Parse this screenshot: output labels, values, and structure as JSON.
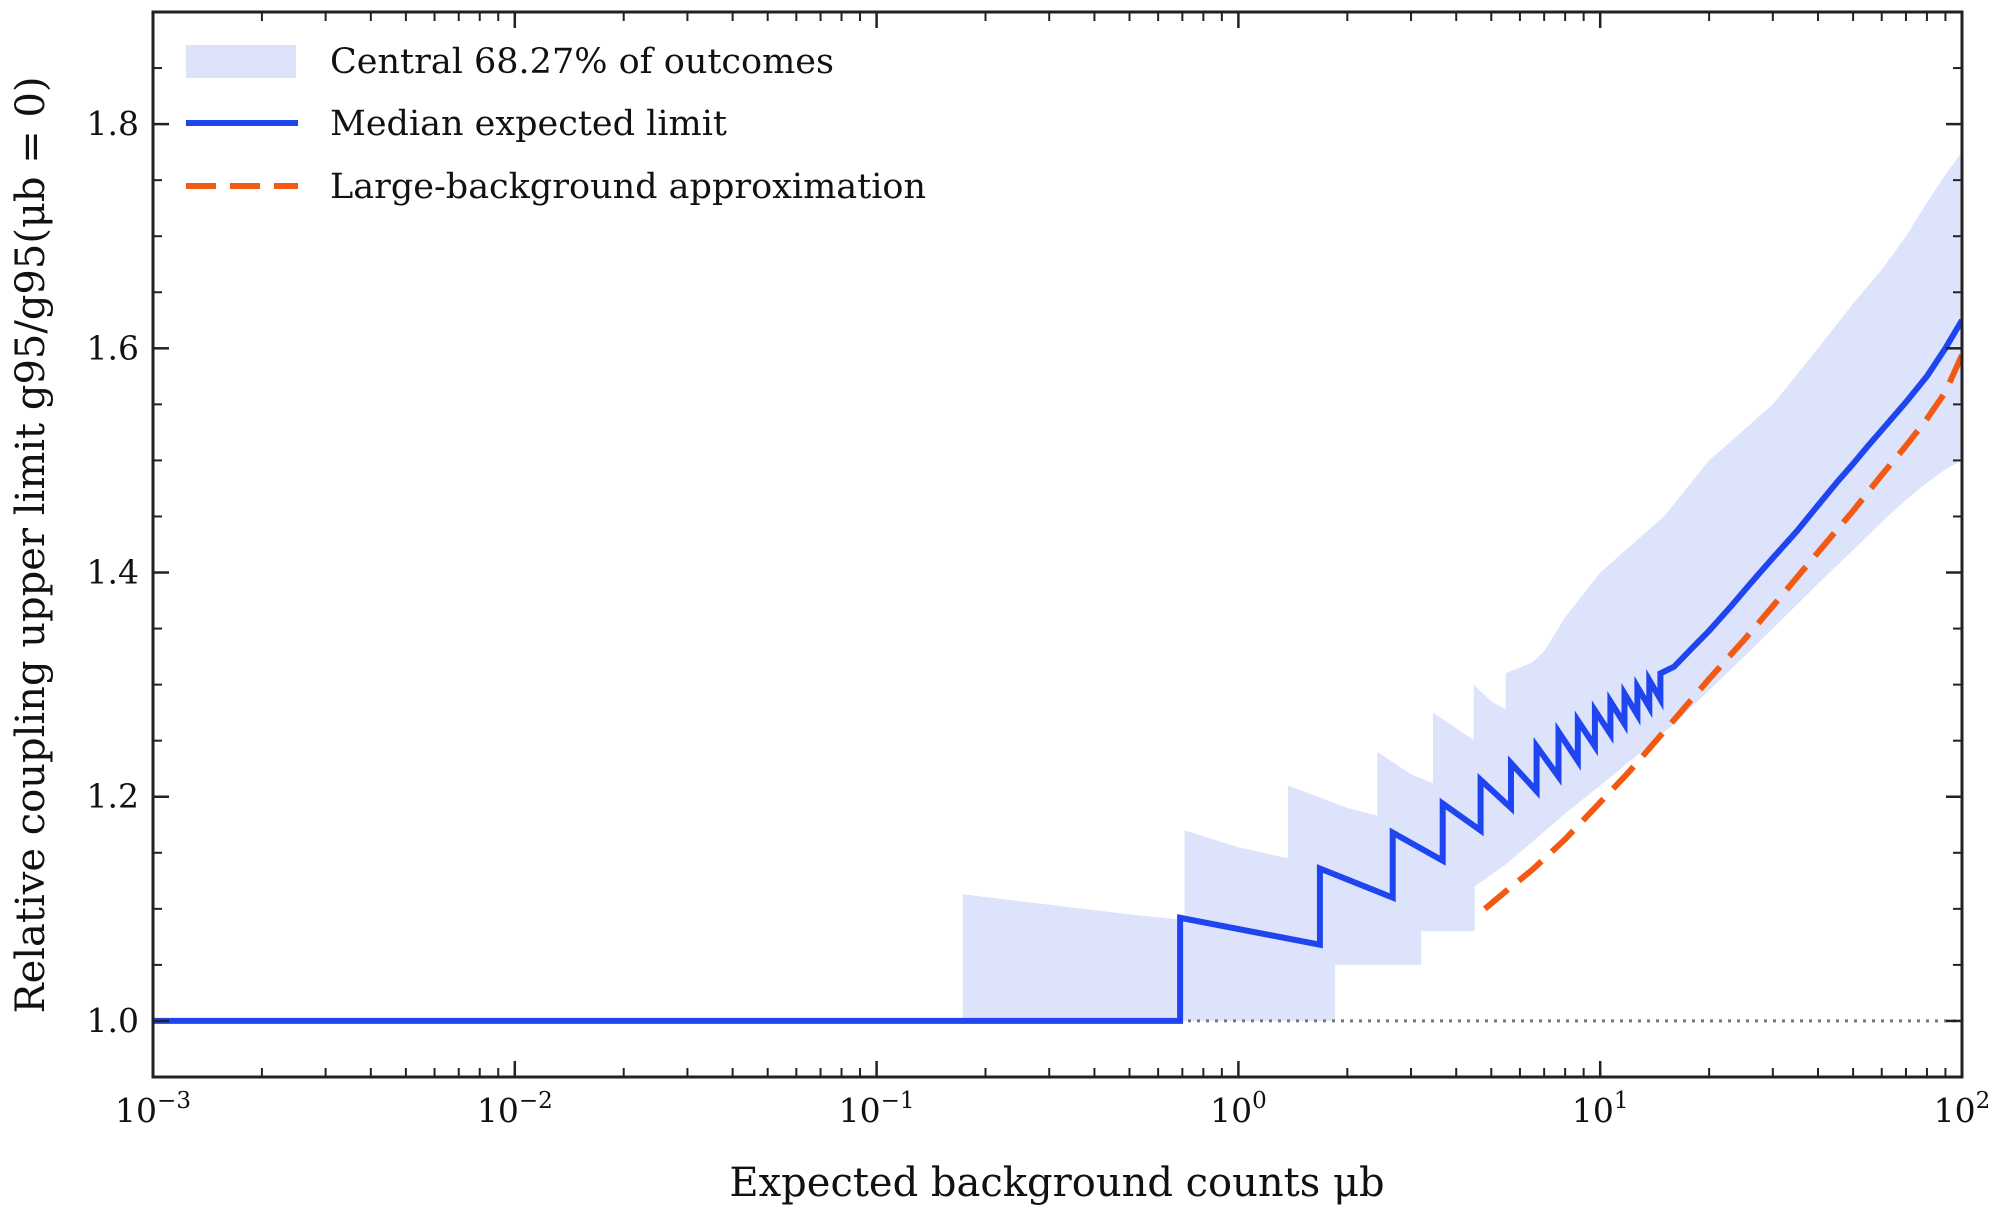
{
  "chart_data": {
    "type": "line",
    "xscale": "log",
    "xlim": [
      0.001,
      100
    ],
    "ylim": [
      0.95,
      1.9
    ],
    "xlabel": "Expected background counts μb",
    "ylabel": "Relative coupling upper limit g95/g95(μb = 0)",
    "grid": false,
    "legend_position": "top-left",
    "colors": {
      "band": "#dde3fb",
      "median": "#1f45f0",
      "approx": "#f25a14",
      "reference": "#777777",
      "axes": "#222222"
    },
    "x_ticks": [
      {
        "value": 0.001,
        "base": "10",
        "exp": "−3"
      },
      {
        "value": 0.01,
        "base": "10",
        "exp": "−2"
      },
      {
        "value": 0.1,
        "base": "10",
        "exp": "−1"
      },
      {
        "value": 1,
        "base": "10",
        "exp": "0"
      },
      {
        "value": 10,
        "base": "10",
        "exp": "1"
      },
      {
        "value": 100,
        "base": "10",
        "exp": "2"
      }
    ],
    "y_ticks": [
      {
        "value": 1.0,
        "label": "1.0"
      },
      {
        "value": 1.2,
        "label": "1.2"
      },
      {
        "value": 1.4,
        "label": "1.4"
      },
      {
        "value": 1.6,
        "label": "1.6"
      },
      {
        "value": 1.8,
        "label": "1.8"
      }
    ],
    "series": [
      {
        "name": "Central 68.27% of outcomes",
        "kind": "band",
        "x": [
          0.001,
          0.173,
          0.173,
          0.5,
          0.71,
          0.71,
          1.0,
          1.37,
          1.37,
          2.0,
          2.42,
          2.42,
          3.0,
          3.45,
          3.45,
          4.5,
          4.47,
          4.47,
          5.0,
          5.48,
          5.48,
          6.5,
          7.0,
          8.0,
          10.0,
          15.0,
          20.0,
          30.0,
          40.0,
          50.0,
          60.0,
          70.0,
          80.0,
          90.0,
          100.0
        ],
        "upper": [
          1.0,
          1.0,
          1.113,
          1.095,
          1.09,
          1.17,
          1.155,
          1.145,
          1.21,
          1.19,
          1.183,
          1.24,
          1.22,
          1.212,
          1.275,
          1.25,
          1.245,
          1.3,
          1.285,
          1.278,
          1.31,
          1.32,
          1.33,
          1.36,
          1.4,
          1.45,
          1.5,
          1.55,
          1.6,
          1.64,
          1.67,
          1.7,
          1.73,
          1.755,
          1.775
        ],
        "lower": [
          1.0,
          1.0,
          1.0,
          1.0,
          1.0,
          1.0,
          1.0,
          1.0,
          1.0,
          1.0,
          1.0,
          1.0,
          1.0,
          1.0,
          1.0,
          1.0,
          1.0,
          1.0,
          1.0,
          1.0,
          1.0,
          1.0,
          1.0,
          1.0,
          1.0,
          1.0,
          1.0,
          1.0,
          1.0,
          1.0,
          1.0,
          1.0,
          1.0,
          1.0,
          1.0
        ],
        "lower_tail": {
          "x": [
            0.001,
            1.85,
            1.85,
            3.2,
            3.2,
            4.5,
            4.5,
            5.5,
            6.5,
            8.0,
            10.0,
            13.0,
            16.0,
            20.0,
            25.0,
            30.0,
            40.0,
            50.0,
            60.0,
            70.0,
            80.0,
            90.0,
            100.0
          ],
          "y": [
            1.0,
            1.0,
            1.05,
            1.05,
            1.08,
            1.08,
            1.12,
            1.14,
            1.16,
            1.185,
            1.21,
            1.24,
            1.265,
            1.295,
            1.325,
            1.35,
            1.39,
            1.42,
            1.445,
            1.465,
            1.48,
            1.492,
            1.5
          ]
        }
      },
      {
        "name": "Median expected limit",
        "kind": "line",
        "x": [
          0.001,
          0.69,
          0.69,
          1.68,
          1.68,
          2.67,
          2.67,
          3.67,
          3.67,
          4.67,
          4.67,
          5.67,
          5.67,
          6.67,
          6.67,
          7.67,
          7.67,
          8.67,
          8.67,
          9.67,
          9.67,
          10.67,
          10.67,
          11.67,
          11.67,
          12.67,
          12.67,
          13.67,
          13.67,
          14.67,
          14.67,
          16.0,
          18.0,
          20.0,
          23.0,
          26.0,
          30.0,
          35.0,
          40.0,
          45.0,
          50.0,
          55.0,
          60.0,
          70.0,
          80.0,
          90.0,
          100.0
        ],
        "y": [
          1.0,
          1.0,
          1.092,
          1.068,
          1.136,
          1.11,
          1.168,
          1.143,
          1.194,
          1.17,
          1.215,
          1.19,
          1.23,
          1.205,
          1.245,
          1.218,
          1.258,
          1.232,
          1.268,
          1.245,
          1.277,
          1.256,
          1.285,
          1.265,
          1.292,
          1.273,
          1.298,
          1.28,
          1.304,
          1.287,
          1.31,
          1.316,
          1.333,
          1.348,
          1.37,
          1.39,
          1.413,
          1.437,
          1.46,
          1.48,
          1.497,
          1.513,
          1.527,
          1.552,
          1.575,
          1.6,
          1.625
        ]
      },
      {
        "name": "Large-background approximation",
        "kind": "dashed",
        "x": [
          4.8,
          5.5,
          6.5,
          8.0,
          10.0,
          12.0,
          15.0,
          20.0,
          25.0,
          30.0,
          40.0,
          50.0,
          60.0,
          70.0,
          80.0,
          90.0,
          100.0
        ],
        "y": [
          1.1,
          1.116,
          1.135,
          1.162,
          1.195,
          1.222,
          1.258,
          1.305,
          1.34,
          1.37,
          1.418,
          1.455,
          1.487,
          1.513,
          1.537,
          1.561,
          1.594
        ]
      },
      {
        "name": "",
        "kind": "reference",
        "x": [
          0.001,
          100
        ],
        "y": [
          1.0,
          1.0
        ]
      }
    ]
  }
}
